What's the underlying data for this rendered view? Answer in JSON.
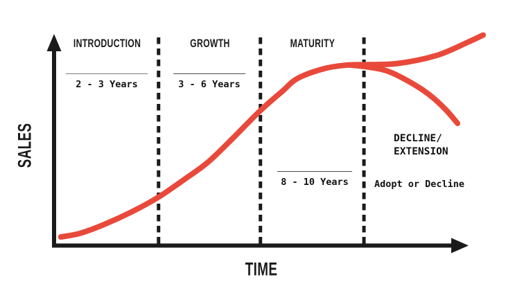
{
  "ui": {
    "y_axis_label": "SALES",
    "x_axis_label": "TIME",
    "stage_labels": {
      "introduction": "INTRODUCTION",
      "growth": "GROWTH",
      "maturity": "MATURITY",
      "decline_extension": "DECLINE/\nEXTENSION"
    },
    "durations": {
      "introduction": "2 - 3 Years",
      "growth": "3 - 6 Years",
      "maturity": "8 - 10 Years",
      "decline_note": "Adopt or Decline"
    }
  },
  "chart_data": {
    "type": "line",
    "xlabel": "TIME",
    "ylabel": "SALES",
    "grid": false,
    "axis_color": "#1b1b1b",
    "line_color": "#e8493a",
    "x_axis_numeric": false,
    "y_axis_numeric": false,
    "stages": [
      {
        "label": "INTRODUCTION",
        "duration": "2 - 3 Years",
        "x_range": [
          0,
          0.25
        ]
      },
      {
        "label": "GROWTH",
        "duration": "3 - 6 Years",
        "x_range": [
          0.25,
          0.497
        ]
      },
      {
        "label": "MATURITY",
        "duration": "8 - 10 Years",
        "x_range": [
          0.497,
          0.748
        ]
      },
      {
        "label": "DECLINE/EXTENSION",
        "duration": "Adopt or Decline",
        "x_range": [
          0.748,
          1.0
        ]
      }
    ],
    "divider_x": [
      0.25,
      0.497,
      0.748
    ],
    "series": [
      {
        "name": "sales-lifecycle",
        "color": "#e8493a",
        "points": [
          [
            0.013,
            0.037
          ],
          [
            0.06,
            0.055
          ],
          [
            0.118,
            0.098
          ],
          [
            0.185,
            0.16
          ],
          [
            0.249,
            0.231
          ],
          [
            0.31,
            0.315
          ],
          [
            0.37,
            0.403
          ],
          [
            0.43,
            0.52
          ],
          [
            0.496,
            0.654
          ],
          [
            0.55,
            0.75
          ],
          [
            0.588,
            0.814
          ],
          [
            0.652,
            0.861
          ],
          [
            0.706,
            0.878
          ],
          [
            0.746,
            0.88
          ]
        ]
      },
      {
        "name": "extension-branch",
        "color": "#e8493a",
        "points": [
          [
            0.746,
            0.88
          ],
          [
            0.83,
            0.886
          ],
          [
            0.924,
            0.925
          ],
          [
            1.0,
            0.99
          ],
          [
            1.037,
            1.025
          ]
        ]
      },
      {
        "name": "decline-branch",
        "color": "#e8493a",
        "points": [
          [
            0.71,
            0.879
          ],
          [
            0.76,
            0.868
          ],
          [
            0.815,
            0.841
          ],
          [
            0.891,
            0.756
          ],
          [
            0.941,
            0.671
          ],
          [
            0.975,
            0.593
          ]
        ]
      }
    ]
  }
}
